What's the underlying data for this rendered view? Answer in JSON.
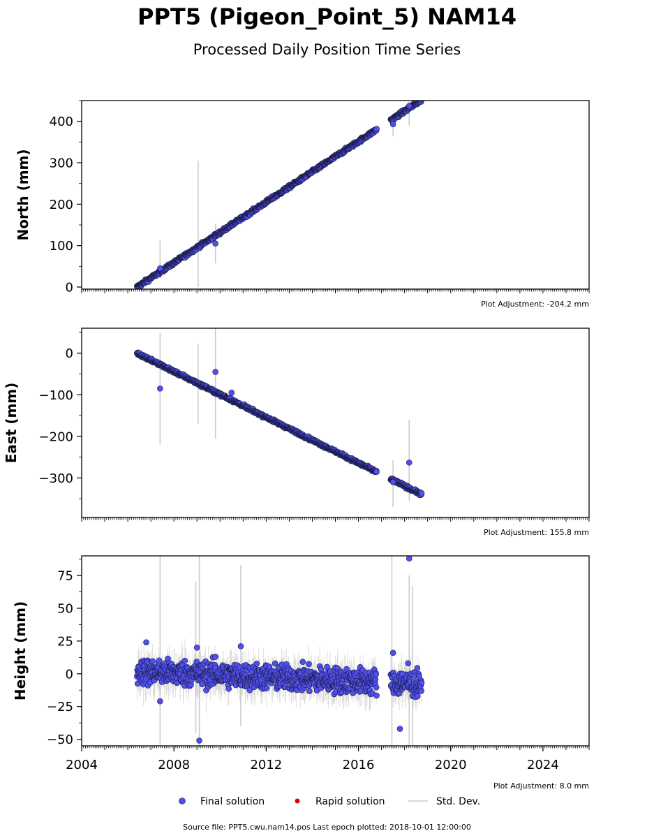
{
  "title": "PPT5 (Pigeon_Point_5) NAM14",
  "subtitle": "Processed Daily Position Time Series",
  "source_note": "Source file: PPT5.cwu.nam14.pos  Last epoch plotted: 2018-10-01 12:00:00",
  "legend": {
    "final": "Final solution",
    "rapid": "Rapid solution",
    "std": "Std. Dev."
  },
  "colors": {
    "final_fill": "#5050ee",
    "final_edge": "#1a1a40",
    "rapid": "#dd0000",
    "std": "#c8c8c8"
  },
  "chart_data": [
    {
      "type": "scatter",
      "ylabel": "North (mm)",
      "adjustment": "Plot Adjustment: -204.2 mm",
      "xlim": [
        2004,
        2026
      ],
      "ylim": [
        -5,
        450
      ],
      "yticks": [
        0,
        100,
        200,
        300,
        400
      ],
      "ytick_labels": [
        "0",
        "100",
        "200",
        "300",
        "400"
      ],
      "trend": {
        "start_year": 2006.4,
        "start_value": 0,
        "rate_per_year": 36.6
      },
      "gaps": [
        [
          2016.8,
          2017.4
        ]
      ],
      "last_year": 2018.75,
      "scatter_mm": 3,
      "err_mm": 4,
      "outliers": [
        {
          "x": 2007.4,
          "y": 45
        },
        {
          "x": 2009.8,
          "y": 105
        },
        {
          "x": 2017.5,
          "y": 393
        },
        {
          "x": 2018.2,
          "y": 437
        }
      ],
      "errbars": [
        {
          "x": 2007.4,
          "y0": 20,
          "y1": 112
        },
        {
          "x": 2009.05,
          "y0": 0,
          "y1": 305
        },
        {
          "x": 2009.8,
          "y0": 57,
          "y1": 153
        },
        {
          "x": 2017.5,
          "y0": 365,
          "y1": 400
        },
        {
          "x": 2018.2,
          "y0": 390,
          "y1": 448
        }
      ]
    },
    {
      "type": "scatter",
      "ylabel": "East (mm)",
      "adjustment": "Plot Adjustment: 155.8 mm",
      "xlim": [
        2004,
        2026
      ],
      "ylim": [
        -395,
        60
      ],
      "yticks": [
        0,
        -100,
        -200,
        -300
      ],
      "ytick_labels": [
        "0",
        "−100",
        "−200",
        "−300"
      ],
      "trend": {
        "start_year": 2006.4,
        "start_value": 0,
        "rate_per_year": -27.5
      },
      "gaps": [
        [
          2016.8,
          2017.4
        ]
      ],
      "last_year": 2018.75,
      "scatter_mm": 2.5,
      "err_mm": 4,
      "outliers": [
        {
          "x": 2007.4,
          "y": -85
        },
        {
          "x": 2009.8,
          "y": -45
        },
        {
          "x": 2018.2,
          "y": -263
        },
        {
          "x": 2010.5,
          "y": -95
        },
        {
          "x": 2017.5,
          "y": -310
        }
      ],
      "errbars": [
        {
          "x": 2007.4,
          "y0": -220,
          "y1": 48
        },
        {
          "x": 2009.05,
          "y0": -170,
          "y1": 22
        },
        {
          "x": 2009.8,
          "y0": -205,
          "y1": 60
        },
        {
          "x": 2017.5,
          "y0": -370,
          "y1": -258
        },
        {
          "x": 2018.2,
          "y0": -355,
          "y1": -160
        }
      ]
    },
    {
      "type": "scatter",
      "ylabel": "Height (mm)",
      "adjustment": "Plot Adjustment: 8.0 mm",
      "xlim": [
        2004,
        2026
      ],
      "ylim": [
        -55,
        90
      ],
      "yticks": [
        75,
        50,
        25,
        0,
        -25,
        -50
      ],
      "ytick_labels": [
        "75",
        "50",
        "25",
        "0",
        "−25",
        "−50"
      ],
      "xticks": [
        2004,
        2008,
        2012,
        2016,
        2020,
        2024
      ],
      "xtick_labels": [
        "2004",
        "2008",
        "2012",
        "2016",
        "2020",
        "2024"
      ],
      "trend": {
        "start_year": 2006.4,
        "start_value": 2,
        "rate_per_year": -0.8
      },
      "gaps": [
        [
          2016.8,
          2017.4
        ]
      ],
      "last_year": 2018.75,
      "scatter_mm": 7,
      "err_mm": 12,
      "outliers": [
        {
          "x": 2006.8,
          "y": 24
        },
        {
          "x": 2007.4,
          "y": -21
        },
        {
          "x": 2009.0,
          "y": 20
        },
        {
          "x": 2009.8,
          "y": 13
        },
        {
          "x": 2009.1,
          "y": -51
        },
        {
          "x": 2010.9,
          "y": 21
        },
        {
          "x": 2017.5,
          "y": 16
        },
        {
          "x": 2017.8,
          "y": -42
        },
        {
          "x": 2018.2,
          "y": 88
        },
        {
          "x": 2018.15,
          "y": 8
        },
        {
          "x": 2017.9,
          "y": 0
        }
      ],
      "errbars": [
        {
          "x": 2007.4,
          "y0": -55,
          "y1": 90
        },
        {
          "x": 2009.1,
          "y0": -55,
          "y1": 90
        },
        {
          "x": 2008.95,
          "y0": -45,
          "y1": 70
        },
        {
          "x": 2010.9,
          "y0": -40,
          "y1": 83
        },
        {
          "x": 2017.45,
          "y0": -55,
          "y1": 90
        },
        {
          "x": 2018.2,
          "y0": -55,
          "y1": 75
        },
        {
          "x": 2018.35,
          "y0": -55,
          "y1": 67
        }
      ]
    }
  ]
}
